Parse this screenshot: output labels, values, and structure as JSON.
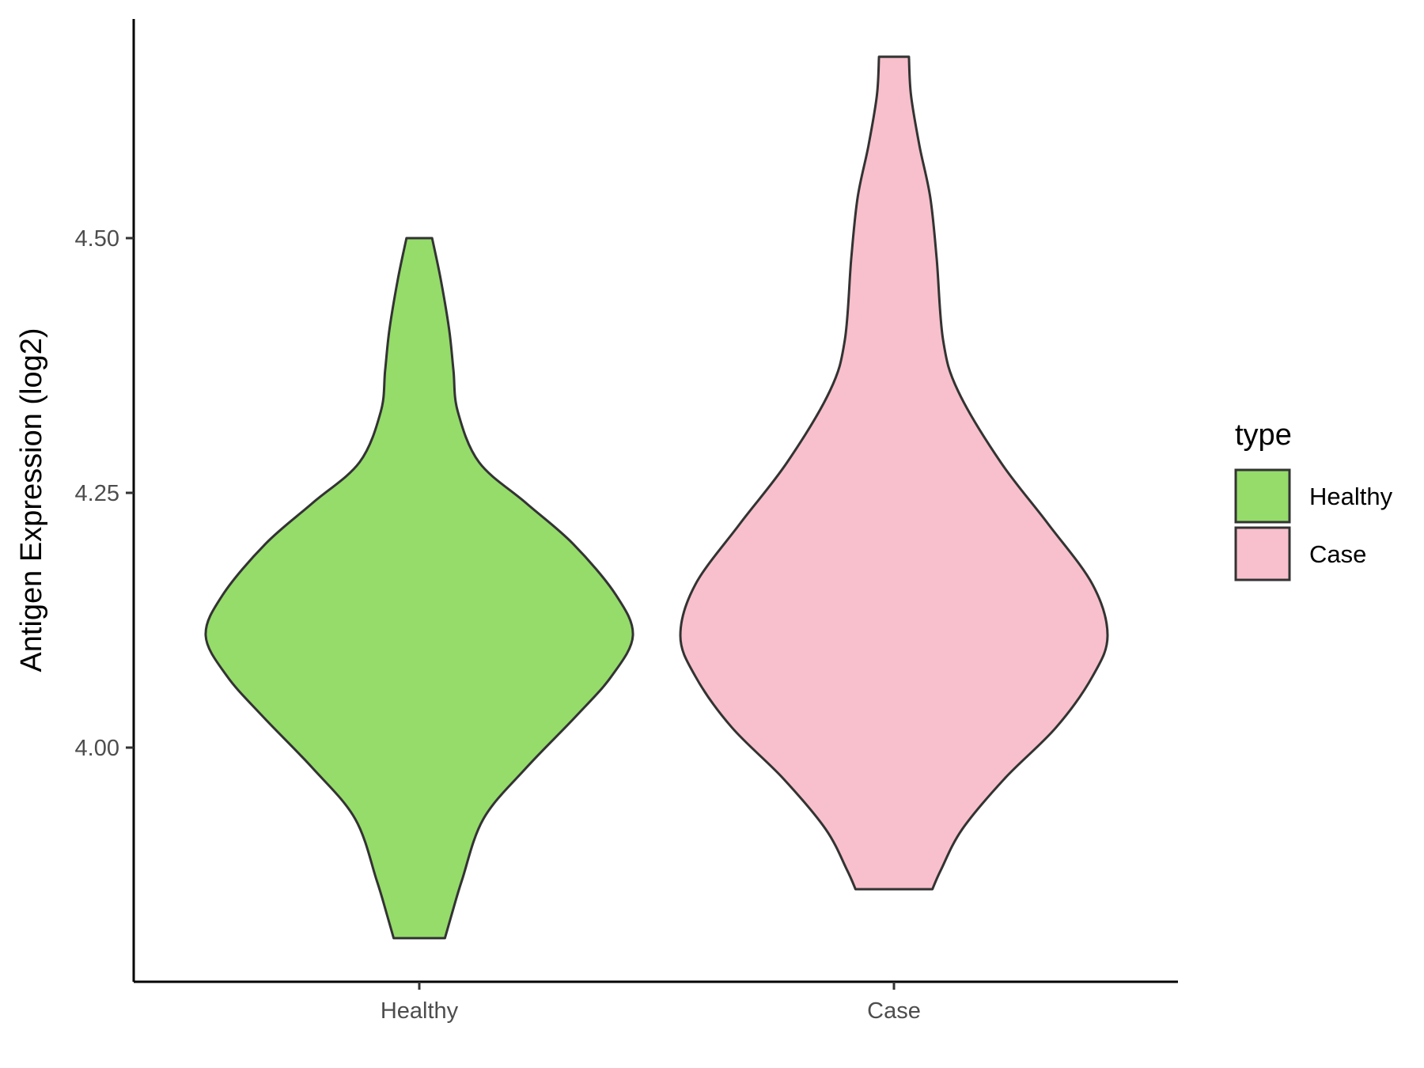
{
  "chart_data": {
    "type": "violin",
    "title": "",
    "xlabel": "",
    "ylabel": "Antigen Expression (log2)",
    "ylim": [
      3.77,
      4.72
    ],
    "yticks": [
      {
        "value": 4.0,
        "label": "4.00"
      },
      {
        "value": 4.25,
        "label": "4.25"
      },
      {
        "value": 4.5,
        "label": "4.50"
      }
    ],
    "categories": [
      "Healthy",
      "Case"
    ],
    "grid": false,
    "legend": {
      "title": "type",
      "placement": "right",
      "entries": [
        {
          "name": "Healthy",
          "color": "#95dc6a"
        },
        {
          "name": "Case",
          "color": "#f8c0cc"
        }
      ]
    },
    "series": [
      {
        "name": "Healthy",
        "color": "#95dc6a",
        "min": 3.813,
        "max": 4.5,
        "density": [
          [
            3.813,
            0.12
          ],
          [
            3.835,
            0.15
          ],
          [
            3.87,
            0.2
          ],
          [
            3.93,
            0.3
          ],
          [
            3.98,
            0.5
          ],
          [
            4.03,
            0.73
          ],
          [
            4.07,
            0.9
          ],
          [
            4.11,
            1.0
          ],
          [
            4.15,
            0.92
          ],
          [
            4.2,
            0.72
          ],
          [
            4.24,
            0.5
          ],
          [
            4.28,
            0.28
          ],
          [
            4.33,
            0.18
          ],
          [
            4.37,
            0.16
          ],
          [
            4.41,
            0.14
          ],
          [
            4.46,
            0.1
          ],
          [
            4.5,
            0.06
          ]
        ]
      },
      {
        "name": "Case",
        "color": "#f8c0cc",
        "min": 3.861,
        "max": 4.678,
        "density": [
          [
            3.861,
            0.18
          ],
          [
            3.88,
            0.22
          ],
          [
            3.92,
            0.32
          ],
          [
            3.97,
            0.52
          ],
          [
            4.02,
            0.76
          ],
          [
            4.07,
            0.93
          ],
          [
            4.11,
            1.0
          ],
          [
            4.16,
            0.93
          ],
          [
            4.22,
            0.72
          ],
          [
            4.28,
            0.5
          ],
          [
            4.35,
            0.3
          ],
          [
            4.4,
            0.23
          ],
          [
            4.48,
            0.2
          ],
          [
            4.54,
            0.17
          ],
          [
            4.59,
            0.12
          ],
          [
            4.64,
            0.08
          ],
          [
            4.678,
            0.07
          ]
        ]
      }
    ]
  }
}
